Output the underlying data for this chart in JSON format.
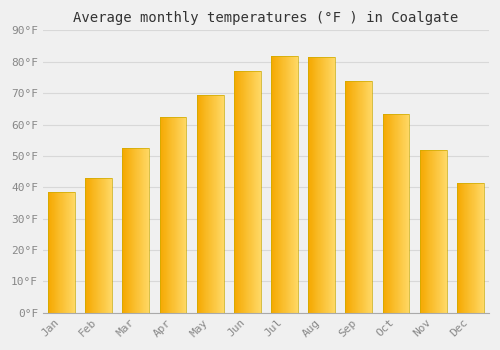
{
  "title": "Average monthly temperatures (°F ) in Coalgate",
  "months": [
    "Jan",
    "Feb",
    "Mar",
    "Apr",
    "May",
    "Jun",
    "Jul",
    "Aug",
    "Sep",
    "Oct",
    "Nov",
    "Dec"
  ],
  "values": [
    38.5,
    43.0,
    52.5,
    62.5,
    69.5,
    77.0,
    82.0,
    81.5,
    74.0,
    63.5,
    52.0,
    41.5
  ],
  "bar_color_left": "#F5A800",
  "bar_color_right": "#FFD966",
  "bar_color_mid": "#FFBB33",
  "ylim": [
    0,
    90
  ],
  "ytick_step": 10,
  "background_color": "#f0f0f0",
  "grid_color": "#d8d8d8",
  "title_fontsize": 10,
  "tick_fontsize": 8,
  "font_family": "monospace"
}
